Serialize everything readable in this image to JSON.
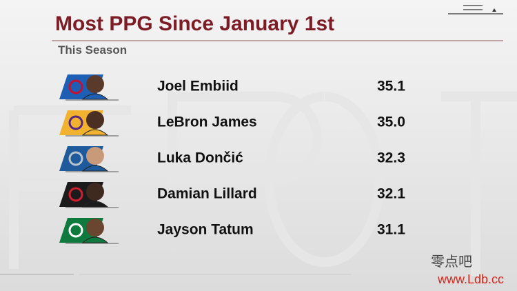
{
  "header": {
    "title": "Most PPG Since January 1st",
    "subtitle": "This Season"
  },
  "rows": [
    {
      "name": "Joel Embiid",
      "ppg": "35.1"
    },
    {
      "name": "LeBron James",
      "ppg": "35.0"
    },
    {
      "name": "Luka Dončić",
      "ppg": "32.3"
    },
    {
      "name": "Damian Lillard",
      "ppg": "32.1"
    },
    {
      "name": "Jayson Tatum",
      "ppg": "31.1"
    }
  ],
  "watermark": {
    "line1": "零点吧",
    "line2": "www.Ldb.cc"
  }
}
